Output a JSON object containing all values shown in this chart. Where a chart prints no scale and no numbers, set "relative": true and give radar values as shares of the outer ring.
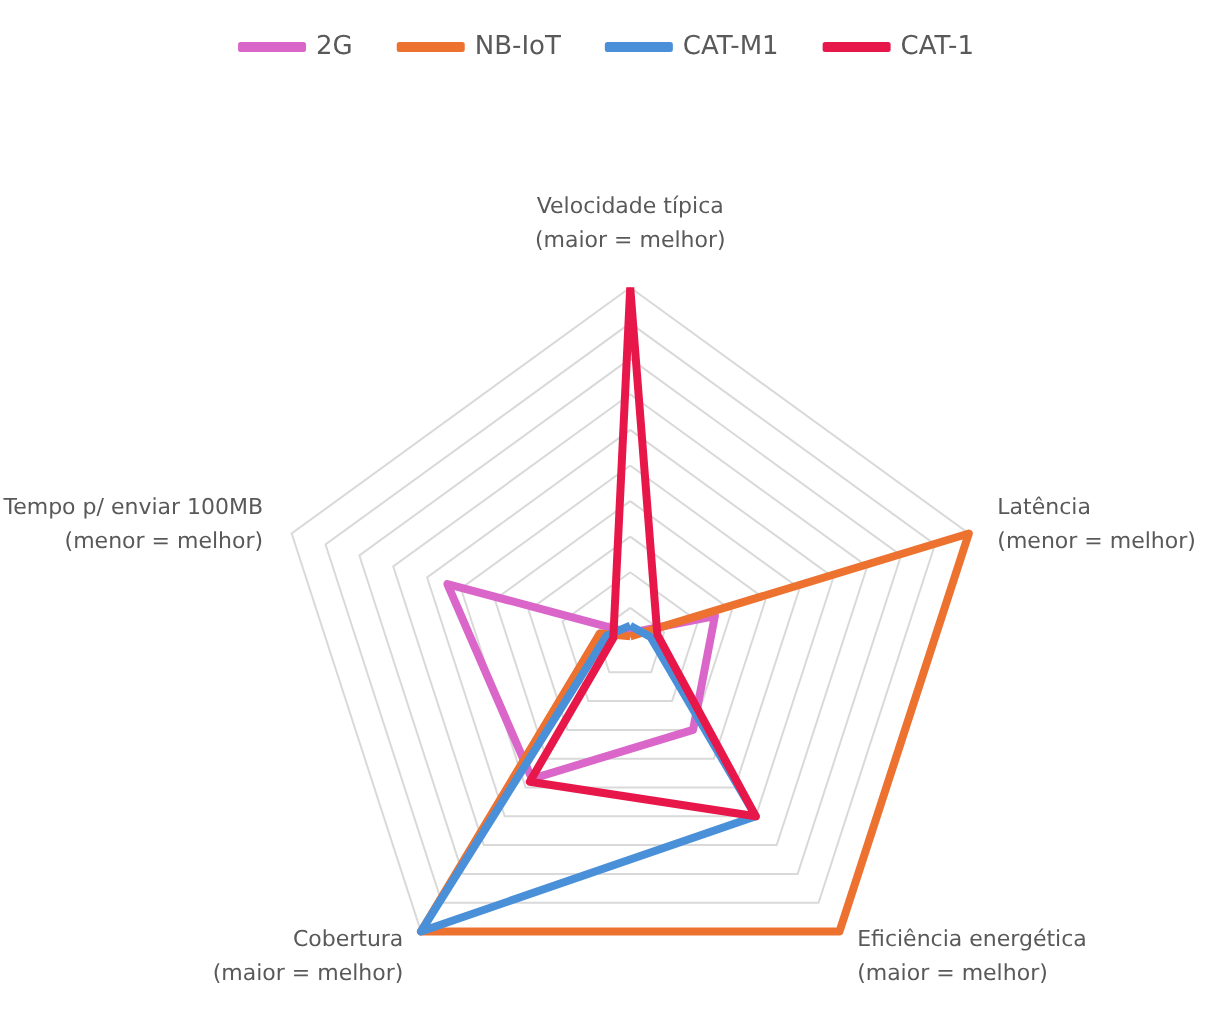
{
  "chart_data": {
    "type": "radar",
    "relative": true,
    "legend": "top",
    "grid": true,
    "line_style": "solid",
    "marker": "none",
    "categories": [
      "Velocidade típica\n(maior = melhor)",
      "Latência\n(menor = melhor)",
      "Eficiência energética\n(maior = melhor)",
      "Cobertura\n(maior = melhor)",
      "Tempo p/ enviar 100MB\n(menor = melhor)"
    ],
    "series": [
      {
        "name": "2G",
        "color": "#d966c8",
        "values": [
          0.03,
          0.25,
          0.3,
          0.47,
          0.54
        ]
      },
      {
        "name": "NB-IoT",
        "color": "#ed7230",
        "values": [
          0.02,
          1,
          1,
          1,
          0.09
        ]
      },
      {
        "name": "CAT-M1",
        "color": "#4a90d9",
        "values": [
          0.05,
          0.06,
          0.6,
          1,
          0.07
        ]
      },
      {
        "name": "CAT-1",
        "color": "#e8174a",
        "values": [
          1,
          0.08,
          0.6,
          0.48,
          0.05
        ]
      }
    ]
  }
}
